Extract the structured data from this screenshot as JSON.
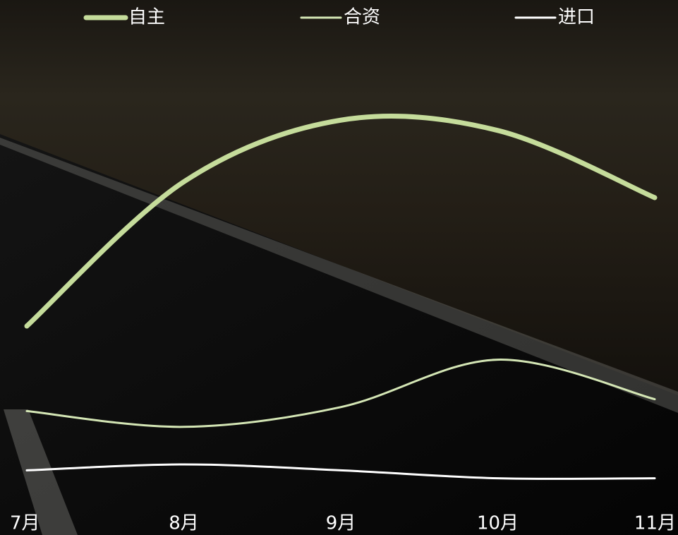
{
  "chart_data": {
    "type": "line",
    "categories": [
      "7月",
      "8月",
      "9月",
      "10月",
      "11月"
    ],
    "series": [
      {
        "name": "自主",
        "color": "#c5dc9b",
        "values": [
          42.5,
          79,
          94.6,
          92,
          75
        ]
      },
      {
        "name": "合资",
        "color": "#d4e6b5",
        "values": [
          21,
          17,
          22,
          34,
          24
        ]
      },
      {
        "name": "进口",
        "color": "#ffffff",
        "values": [
          6,
          7.5,
          6,
          4,
          4
        ]
      }
    ],
    "ylim": [
      0,
      100
    ],
    "grid": false,
    "legend": "top",
    "smooth": true
  }
}
